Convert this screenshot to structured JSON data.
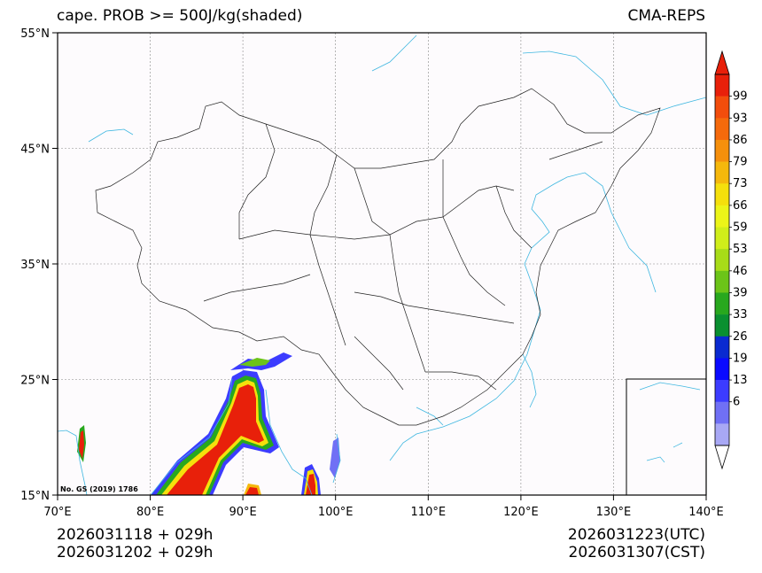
{
  "title_left": "cape. PROB >= 500J/kg(shaded)",
  "title_right": "CMA-REPS",
  "footer_left": [
    "2026031118  +  029h",
    "2026031202  +  029h"
  ],
  "footer_right": [
    "2026031223(UTC)",
    "2026031307(CST)"
  ],
  "map_credit": "No. GS (2019) 1786",
  "axes": {
    "lon_ticks": [
      "70°E",
      "80°E",
      "90°E",
      "100°E",
      "110°E",
      "120°E",
      "130°E",
      "140°E"
    ],
    "lat_ticks": [
      "55°N",
      "45°N",
      "35°N",
      "25°N",
      "15°N"
    ]
  },
  "colorbar": {
    "labels": [
      "99",
      "93",
      "86",
      "79",
      "73",
      "66",
      "59",
      "53",
      "46",
      "39",
      "33",
      "26",
      "19",
      "13",
      "6"
    ],
    "colors": [
      "#e8200a",
      "#f24d0c",
      "#f56a0c",
      "#f5900c",
      "#f5b80c",
      "#f5e00c",
      "#ecf518",
      "#d0ee1a",
      "#a8dc18",
      "#6cc418",
      "#28a81e",
      "#0a9030",
      "#0a2ad0",
      "#0a0aff",
      "#3c3cff",
      "#7070f5",
      "#a8a8f5"
    ],
    "top_arrow_color": "#e8200a",
    "bottom_arrow_color": "#ffffff"
  },
  "colors": {
    "coast": "#3fb7e0",
    "border": "#222222",
    "grid": "#888888"
  }
}
